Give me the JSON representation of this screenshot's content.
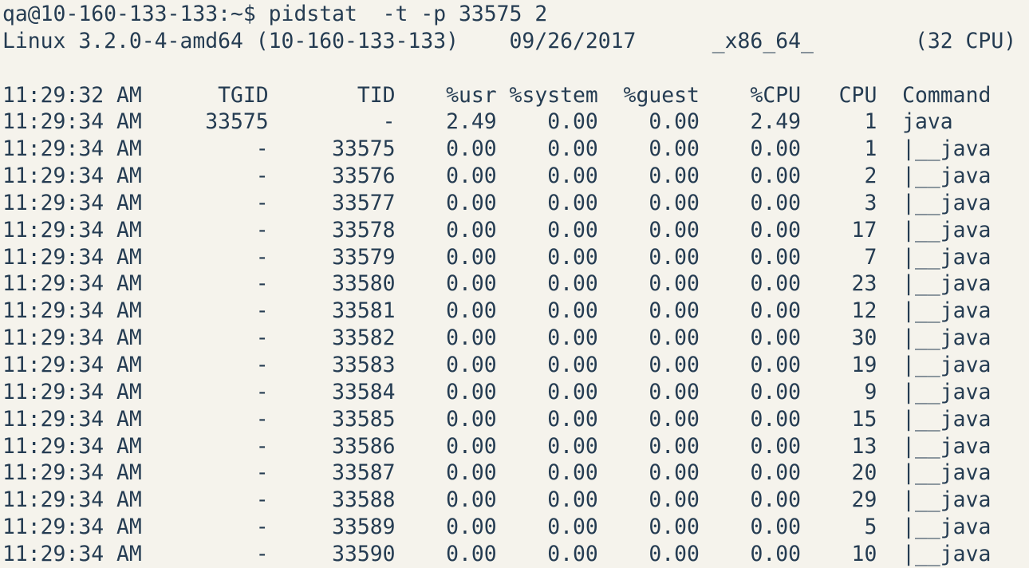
{
  "colors": {
    "background": "#f5f3ec",
    "foreground": "#253c52"
  },
  "shell": {
    "prompt": "qa@10-160-133-133:~$",
    "command": "pidstat  -t -p 33575 2"
  },
  "system_info": {
    "kernel": "Linux 3.2.0-4-amd64",
    "hostname": "10-160-133-133",
    "date": "09/26/2017",
    "arch": "_x86_64_",
    "cpu_count": "(32 CPU)"
  },
  "pidstat": {
    "columns": {
      "time": "11:29:32 AM",
      "tgid": "TGID",
      "tid": "TID",
      "usr": "%usr",
      "system": "%system",
      "guest": "%guest",
      "cpu_pct": "%CPU",
      "cpu": "CPU",
      "command": "Command"
    },
    "rows": [
      [
        "11:29:34 AM",
        "33575",
        "-",
        "2.49",
        "0.00",
        "0.00",
        "2.49",
        "1",
        "java"
      ],
      [
        "11:29:34 AM",
        "-",
        "33575",
        "0.00",
        "0.00",
        "0.00",
        "0.00",
        "1",
        "|__java"
      ],
      [
        "11:29:34 AM",
        "-",
        "33576",
        "0.00",
        "0.00",
        "0.00",
        "0.00",
        "2",
        "|__java"
      ],
      [
        "11:29:34 AM",
        "-",
        "33577",
        "0.00",
        "0.00",
        "0.00",
        "0.00",
        "3",
        "|__java"
      ],
      [
        "11:29:34 AM",
        "-",
        "33578",
        "0.00",
        "0.00",
        "0.00",
        "0.00",
        "17",
        "|__java"
      ],
      [
        "11:29:34 AM",
        "-",
        "33579",
        "0.00",
        "0.00",
        "0.00",
        "0.00",
        "7",
        "|__java"
      ],
      [
        "11:29:34 AM",
        "-",
        "33580",
        "0.00",
        "0.00",
        "0.00",
        "0.00",
        "23",
        "|__java"
      ],
      [
        "11:29:34 AM",
        "-",
        "33581",
        "0.00",
        "0.00",
        "0.00",
        "0.00",
        "12",
        "|__java"
      ],
      [
        "11:29:34 AM",
        "-",
        "33582",
        "0.00",
        "0.00",
        "0.00",
        "0.00",
        "30",
        "|__java"
      ],
      [
        "11:29:34 AM",
        "-",
        "33583",
        "0.00",
        "0.00",
        "0.00",
        "0.00",
        "19",
        "|__java"
      ],
      [
        "11:29:34 AM",
        "-",
        "33584",
        "0.00",
        "0.00",
        "0.00",
        "0.00",
        "9",
        "|__java"
      ],
      [
        "11:29:34 AM",
        "-",
        "33585",
        "0.00",
        "0.00",
        "0.00",
        "0.00",
        "15",
        "|__java"
      ],
      [
        "11:29:34 AM",
        "-",
        "33586",
        "0.00",
        "0.00",
        "0.00",
        "0.00",
        "13",
        "|__java"
      ],
      [
        "11:29:34 AM",
        "-",
        "33587",
        "0.00",
        "0.00",
        "0.00",
        "0.00",
        "20",
        "|__java"
      ],
      [
        "11:29:34 AM",
        "-",
        "33588",
        "0.00",
        "0.00",
        "0.00",
        "0.00",
        "29",
        "|__java"
      ],
      [
        "11:29:34 AM",
        "-",
        "33589",
        "0.00",
        "0.00",
        "0.00",
        "0.00",
        "5",
        "|__java"
      ],
      [
        "11:29:34 AM",
        "-",
        "33590",
        "0.00",
        "0.00",
        "0.00",
        "0.00",
        "10",
        "|__java"
      ]
    ]
  }
}
